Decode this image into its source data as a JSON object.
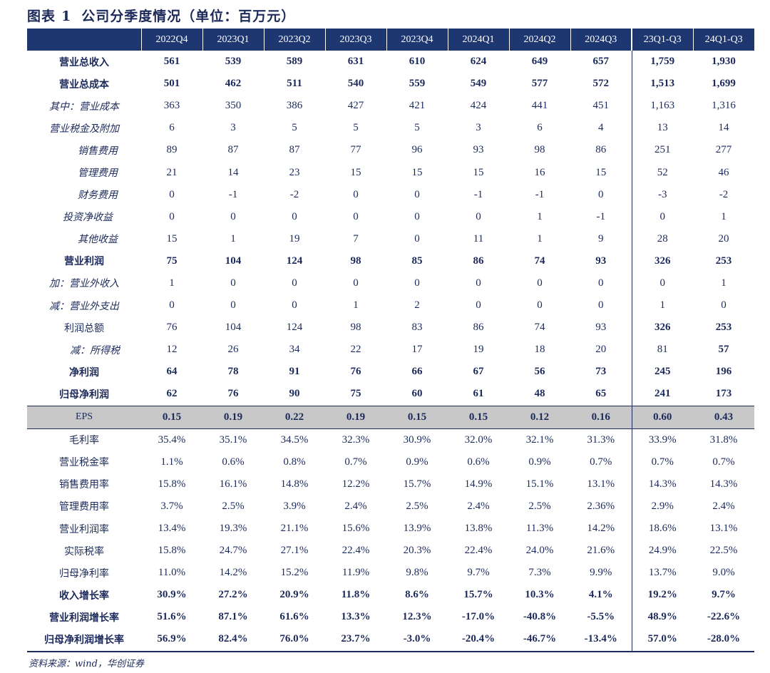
{
  "title": {
    "prefix": "图表",
    "number": "1",
    "text": "公司分季度情况（单位：百万元）"
  },
  "headers": [
    "",
    "2022Q4",
    "2023Q1",
    "2023Q2",
    "2023Q3",
    "2023Q4",
    "2024Q1",
    "2024Q2",
    "2024Q3",
    "23Q1-Q3",
    "24Q1-Q3"
  ],
  "rows": [
    {
      "label": "营业总收入",
      "values": [
        "561",
        "539",
        "589",
        "631",
        "610",
        "624",
        "649",
        "657",
        "1,759",
        "1,930"
      ]
    },
    {
      "label": "营业总成本",
      "values": [
        "501",
        "462",
        "511",
        "540",
        "559",
        "549",
        "577",
        "572",
        "1,513",
        "1,699"
      ]
    },
    {
      "label": "其中：营业成本",
      "values": [
        "363",
        "350",
        "386",
        "427",
        "421",
        "424",
        "441",
        "451",
        "1,163",
        "1,316"
      ]
    },
    {
      "label": "营业税金及附加",
      "values": [
        "6",
        "3",
        "5",
        "5",
        "5",
        "3",
        "6",
        "4",
        "13",
        "14"
      ]
    },
    {
      "label": "销售费用",
      "values": [
        "89",
        "87",
        "87",
        "77",
        "96",
        "93",
        "98",
        "86",
        "251",
        "277"
      ]
    },
    {
      "label": "管理费用",
      "values": [
        "21",
        "14",
        "23",
        "15",
        "15",
        "15",
        "16",
        "15",
        "52",
        "46"
      ]
    },
    {
      "label": "财务费用",
      "values": [
        "0",
        "-1",
        "-2",
        "0",
        "0",
        "-1",
        "-1",
        "0",
        "-3",
        "-2"
      ]
    },
    {
      "label": "投资净收益",
      "values": [
        "0",
        "0",
        "0",
        "0",
        "0",
        "0",
        "1",
        "-1",
        "0",
        "1"
      ]
    },
    {
      "label": "其他收益",
      "values": [
        "15",
        "1",
        "19",
        "7",
        "0",
        "11",
        "1",
        "9",
        "28",
        "20"
      ]
    },
    {
      "label": "营业利润",
      "values": [
        "75",
        "104",
        "124",
        "98",
        "85",
        "86",
        "74",
        "93",
        "326",
        "253"
      ]
    },
    {
      "label": "加：营业外收入",
      "values": [
        "1",
        "0",
        "0",
        "0",
        "0",
        "0",
        "0",
        "0",
        "0",
        "1"
      ]
    },
    {
      "label": "减：营业外支出",
      "values": [
        "0",
        "0",
        "0",
        "1",
        "2",
        "0",
        "0",
        "0",
        "1",
        "0"
      ]
    },
    {
      "label": "利润总额",
      "values": [
        "76",
        "104",
        "124",
        "98",
        "83",
        "86",
        "74",
        "93",
        "326",
        "253"
      ]
    },
    {
      "label": "减：所得税",
      "values": [
        "12",
        "26",
        "34",
        "22",
        "17",
        "19",
        "18",
        "20",
        "81",
        "57"
      ]
    },
    {
      "label": "净利润",
      "values": [
        "64",
        "78",
        "91",
        "76",
        "66",
        "67",
        "56",
        "73",
        "245",
        "196"
      ]
    },
    {
      "label": "归母净利润",
      "values": [
        "62",
        "76",
        "90",
        "75",
        "60",
        "61",
        "48",
        "65",
        "241",
        "173"
      ]
    },
    {
      "label": "EPS",
      "values": [
        "0.15",
        "0.19",
        "0.22",
        "0.19",
        "0.15",
        "0.15",
        "0.12",
        "0.16",
        "0.60",
        "0.43"
      ]
    },
    {
      "label": "毛利率",
      "values": [
        "35.4%",
        "35.1%",
        "34.5%",
        "32.3%",
        "30.9%",
        "32.0%",
        "32.1%",
        "31.3%",
        "33.9%",
        "31.8%"
      ]
    },
    {
      "label": "营业税金率",
      "values": [
        "1.1%",
        "0.6%",
        "0.8%",
        "0.7%",
        "0.9%",
        "0.6%",
        "0.9%",
        "0.7%",
        "0.7%",
        "0.7%"
      ]
    },
    {
      "label": "销售费用率",
      "values": [
        "15.8%",
        "16.1%",
        "14.8%",
        "12.2%",
        "15.7%",
        "14.9%",
        "15.1%",
        "13.1%",
        "14.3%",
        "14.3%"
      ]
    },
    {
      "label": "管理费用率",
      "values": [
        "3.7%",
        "2.5%",
        "3.9%",
        "2.4%",
        "2.5%",
        "2.4%",
        "2.5%",
        "2.36%",
        "2.9%",
        "2.4%"
      ]
    },
    {
      "label": "营业利润率",
      "values": [
        "13.4%",
        "19.3%",
        "21.1%",
        "15.6%",
        "13.9%",
        "13.8%",
        "11.3%",
        "14.2%",
        "18.6%",
        "13.1%"
      ]
    },
    {
      "label": "实际税率",
      "values": [
        "15.8%",
        "24.7%",
        "27.1%",
        "22.4%",
        "20.3%",
        "22.4%",
        "24.0%",
        "21.6%",
        "24.9%",
        "22.5%"
      ]
    },
    {
      "label": "归母净利率",
      "values": [
        "11.0%",
        "14.2%",
        "15.2%",
        "11.9%",
        "9.8%",
        "9.7%",
        "7.3%",
        "9.9%",
        "13.7%",
        "9.0%"
      ]
    },
    {
      "label": "收入增长率",
      "values": [
        "30.9%",
        "27.2%",
        "20.9%",
        "11.8%",
        "8.6%",
        "15.7%",
        "10.3%",
        "4.1%",
        "19.2%",
        "9.7%"
      ]
    },
    {
      "label": "营业利润增长率",
      "values": [
        "51.6%",
        "87.1%",
        "61.6%",
        "13.3%",
        "12.3%",
        "-17.0%",
        "-40.8%",
        "-5.5%",
        "48.9%",
        "-22.6%"
      ]
    },
    {
      "label": "归母净利润增长率",
      "values": [
        "56.9%",
        "82.4%",
        "76.0%",
        "23.7%",
        "-3.0%",
        "-20.4%",
        "-46.7%",
        "-13.4%",
        "57.0%",
        "-28.0%"
      ]
    }
  ],
  "source": "资料来源：wind，华创证券",
  "colors": {
    "header_bg": "#1f3770",
    "text": "#1b2a5a",
    "eps_bg": "#c8c8c8"
  }
}
